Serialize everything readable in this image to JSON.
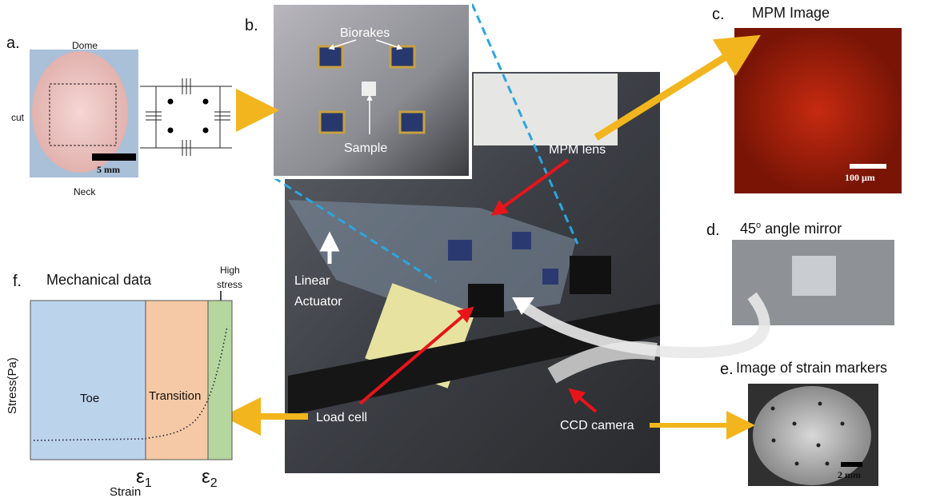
{
  "panel_a": {
    "label": "a.",
    "top": "Dome",
    "side": "cut",
    "bottom": "Neck",
    "scale": "5 mm"
  },
  "panel_b": {
    "label": "b.",
    "biorakes": "Biorakes",
    "sample": "Sample"
  },
  "panel_c": {
    "label": "c.",
    "title": "MPM Image",
    "scale": "100 μm"
  },
  "panel_d": {
    "label": "d.",
    "title_number": "45",
    "title_sup": "o",
    "title_rest": "angle mirror"
  },
  "panel_e": {
    "label": "e.",
    "title": "Image of strain markers",
    "scale": "2 mm"
  },
  "panel_f": {
    "label": "f.",
    "title": "Mechanical data",
    "high_stress": [
      "High",
      "stress"
    ],
    "y_label": "Stress(Pa)",
    "x_label": "Strain",
    "regions": [
      "Toe",
      "Transition"
    ],
    "epsilon": {
      "symbol": "ε",
      "subs": [
        "1",
        "2"
      ]
    }
  },
  "setup": {
    "mpm_lens": "MPM lens",
    "actuator": [
      "Linear",
      "Actuator"
    ],
    "load_cell": "Load cell",
    "ccd_camera": "CCD camera"
  }
}
